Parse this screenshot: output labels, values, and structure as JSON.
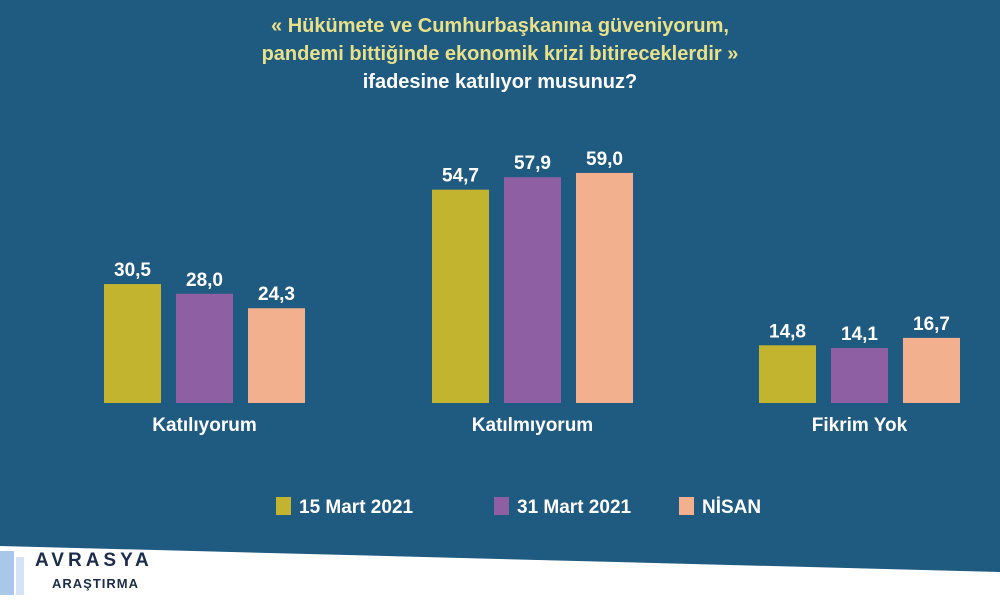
{
  "title": {
    "line1": "« Hükümete ve Cumhurbaşkanına güveniyorum,",
    "line2": "pandemi bittiğinde ekonomik krizi bitireceklerdir »",
    "line3": "ifadesine katılıyor musunuz?"
  },
  "chart_data": {
    "type": "bar",
    "categories": [
      "Katılıyorum",
      "Katılmıyorum",
      "Fikrim Yok"
    ],
    "series": [
      {
        "name": "15 Mart 2021",
        "color": "#c2b42e",
        "values": [
          30.5,
          54.7,
          14.8
        ],
        "labels": [
          "30,5",
          "54,7",
          "14,8"
        ]
      },
      {
        "name": "31 Mart 2021",
        "color": "#8e5fa3",
        "values": [
          28.0,
          57.9,
          14.1
        ],
        "labels": [
          "28,0",
          "57,9",
          "14,1"
        ]
      },
      {
        "name": "NİSAN",
        "color": "#f2b08e",
        "values": [
          24.3,
          59.0,
          16.7
        ],
        "labels": [
          "24,3",
          "59,0",
          "16,7"
        ]
      }
    ],
    "ylim": [
      0,
      60
    ],
    "legend_position": "bottom"
  },
  "logo": {
    "name": "AVRASYA",
    "subtitle": "ARAŞTIRMA"
  },
  "colors": {
    "background": "#1f5a80",
    "title_accent": "#e9e08a"
  }
}
